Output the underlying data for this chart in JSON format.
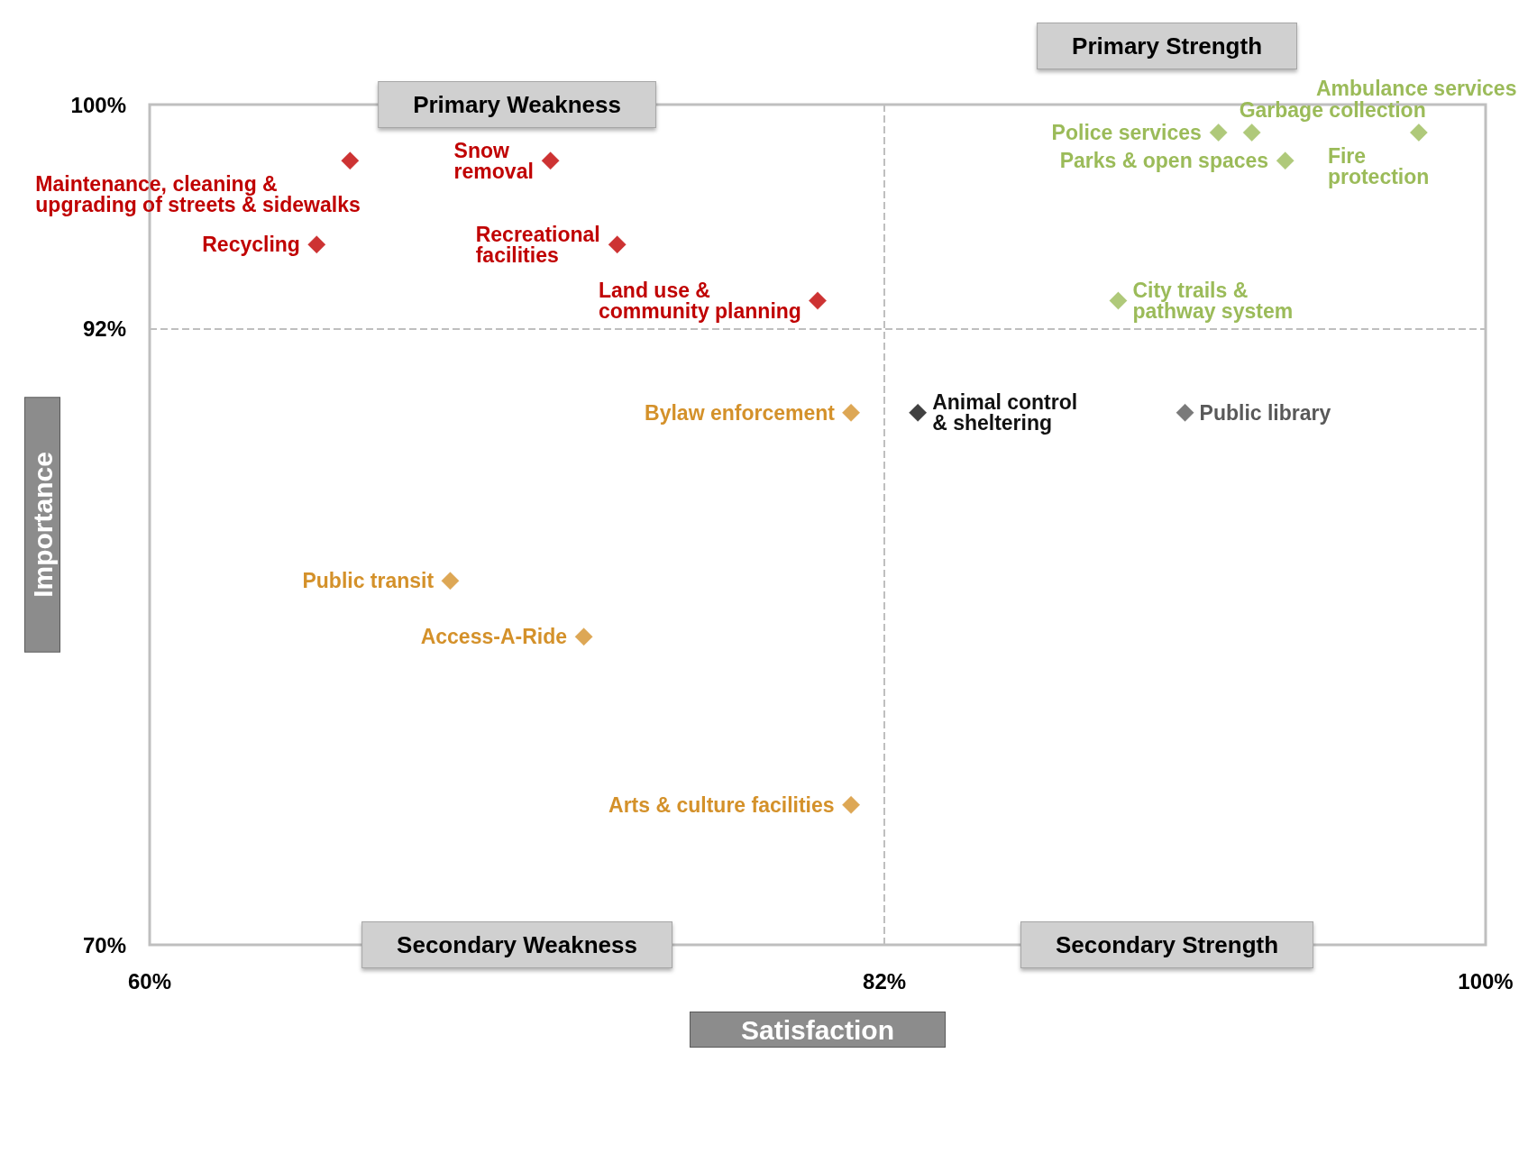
{
  "chart_data": {
    "type": "scatter",
    "xlabel": "Satisfaction",
    "ylabel": "Importance",
    "marker": "diamond",
    "grid": false,
    "xlim": [
      60,
      100
    ],
    "xticks": [
      {
        "value": 60,
        "label": "60%"
      },
      {
        "value": 82,
        "label": "82%"
      },
      {
        "value": 100,
        "label": "100%"
      }
    ],
    "ylim": [
      70,
      100
    ],
    "yticks": [
      {
        "value": 70,
        "label": "70%"
      },
      {
        "value": 92,
        "label": "92%"
      },
      {
        "value": 100,
        "label": "100%"
      }
    ],
    "ref_lines": [
      {
        "axis": "x",
        "value": 82,
        "color": "#bfbfbf",
        "line_style": "dashed"
      },
      {
        "axis": "y",
        "value": 92,
        "color": "#bfbfbf",
        "line_style": "dashed"
      }
    ],
    "series": [
      {
        "color": "#c00000",
        "x": [
          66,
          72,
          65,
          74,
          80
        ],
        "values": [
          98,
          98,
          95,
          95,
          93
        ]
      },
      {
        "color": "#9bbb59",
        "x": [
          92,
          93,
          98,
          94,
          89
        ],
        "values": [
          99,
          99,
          99,
          98,
          93
        ]
      },
      {
        "color": "#d4912a",
        "x": [
          81,
          69,
          73,
          81
        ],
        "values": [
          89,
          83,
          81,
          75
        ]
      },
      {
        "color": "#111111",
        "x": [
          83
        ],
        "values": [
          89
        ]
      },
      {
        "color": "#595959",
        "x": [
          91
        ],
        "values": [
          89
        ]
      }
    ],
    "annotations": [
      "Primary Weakness",
      "Primary Strength",
      "Secondary Weakness",
      "Secondary Strength",
      {
        "text": "Maintenance, cleaning &\nupgrading of streets & sidewalks",
        "x": 66,
        "y": 98
      },
      {
        "text": "Snow\nremoval",
        "x": 72,
        "y": 98
      },
      {
        "text": "Recycling",
        "x": 65,
        "y": 95
      },
      {
        "text": "Recreational\nfacilities",
        "x": 74,
        "y": 95
      },
      {
        "text": "Land use &\ncommunity planning",
        "x": 80,
        "y": 93
      },
      {
        "text": "Police services",
        "x": 92,
        "y": 99
      },
      {
        "text": "Garbage collection",
        "x": 93,
        "y": 99
      },
      {
        "text": "Ambulance services",
        "x": 98,
        "y": 99
      },
      {
        "text": "Fire\nprotection",
        "x": 98,
        "y": 99
      },
      {
        "text": "Parks & open spaces",
        "x": 94,
        "y": 98
      },
      {
        "text": "City trails &\npathway system",
        "x": 89,
        "y": 93
      },
      {
        "text": "Bylaw enforcement",
        "x": 81,
        "y": 89
      },
      {
        "text": "Public transit",
        "x": 69,
        "y": 83
      },
      {
        "text": "Access-A-Ride",
        "x": 73,
        "y": 81
      },
      {
        "text": "Arts & culture facilities",
        "x": 81,
        "y": 75
      },
      {
        "text": "Animal control\n& sheltering",
        "x": 83,
        "y": 89
      },
      {
        "text": "Public library",
        "x": 91,
        "y": 89
      }
    ]
  }
}
